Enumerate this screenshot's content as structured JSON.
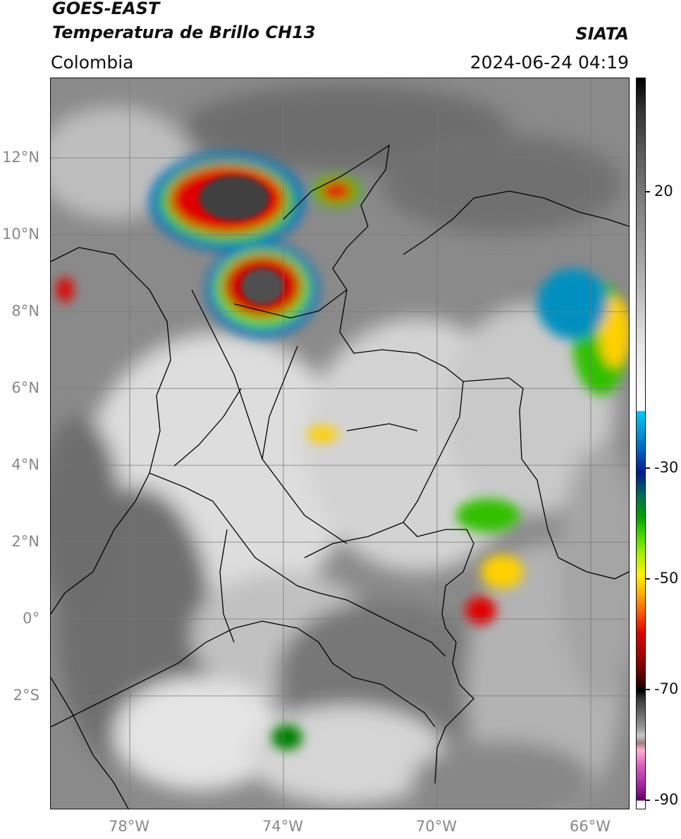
{
  "header": {
    "title_line1": "GOES-EAST",
    "title_line2": "Temperatura de Brillo CH13",
    "region": "Colombia",
    "brand": "SIATA",
    "timestamp": "2024-06-24 04:19"
  },
  "map": {
    "lat_labels": [
      "12°N",
      "10°N",
      "8°N",
      "6°N",
      "4°N",
      "2°N",
      "0°",
      "2°S"
    ],
    "lon_labels": [
      "78°W",
      "74°W",
      "70°W",
      "66°W"
    ],
    "colorbar": {
      "ticks": [
        "20",
        "-30",
        "-50",
        "-70",
        "-90"
      ],
      "colors": {
        "warm": "#000000",
        "mid": "#ffffff",
        "cold_blue": "#00a0d8",
        "cold_green": "#30d000",
        "cold_yellow": "#fff000",
        "cold_red": "#e00000",
        "coldest": "#a020a0"
      }
    },
    "icons": [
      "satellite-image",
      "borders-overlay",
      "graticule"
    ]
  }
}
